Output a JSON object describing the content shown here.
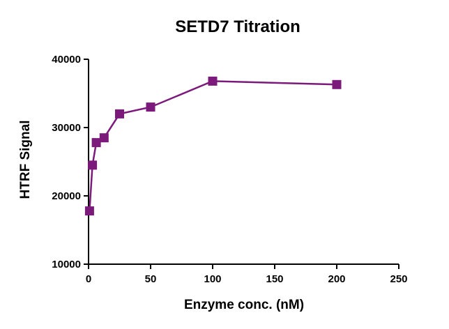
{
  "chart_data": {
    "type": "line",
    "title": "SETD7 Titration",
    "xlabel": "Enzyme conc. (nM)",
    "ylabel": "HTRF Signal",
    "xlim": [
      0,
      250
    ],
    "ylim": [
      10000,
      40000
    ],
    "xticks": [
      0,
      50,
      100,
      150,
      200,
      250
    ],
    "yticks": [
      10000,
      20000,
      30000,
      40000
    ],
    "xtick_labels": [
      "0",
      "50",
      "100",
      "150",
      "200",
      "250"
    ],
    "ytick_labels": [
      "10000",
      "20000",
      "30000",
      "40000"
    ],
    "grid": false,
    "legend": "none",
    "marker": "square",
    "color": "#7b1a7b",
    "series": [
      {
        "x": [
          0.78,
          3.125,
          6.25,
          12.5,
          25,
          50,
          100,
          200
        ],
        "y": [
          17800,
          24500,
          27800,
          28500,
          32000,
          33000,
          36800,
          36300
        ]
      }
    ]
  }
}
